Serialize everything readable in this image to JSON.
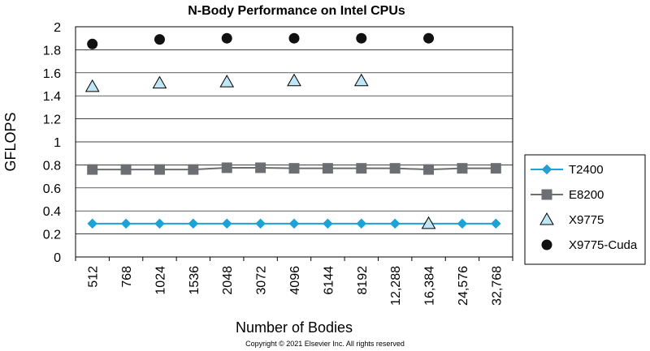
{
  "chart_data": {
    "type": "line",
    "title": "N-Body Performance on Intel CPUs",
    "xlabel": "Number of Bodies",
    "ylabel": "GFLOPS",
    "ylim": [
      0,
      2
    ],
    "yticks": [
      "0",
      "0.2",
      "0.4",
      "0.6",
      "0.8",
      "1",
      "1.2",
      "1.4",
      "1.6",
      "1.8",
      "2"
    ],
    "categories": [
      "512",
      "768",
      "1024",
      "1536",
      "2048",
      "3072",
      "4096",
      "6144",
      "8192",
      "12,288",
      "16,384",
      "24,576",
      "32,768"
    ],
    "grid": true,
    "legend_position": "right",
    "series": [
      {
        "name": "T2400",
        "style": "line",
        "marker": "diamond",
        "color": "#1ba3d8",
        "values": [
          0.29,
          0.29,
          0.29,
          0.29,
          0.29,
          0.29,
          0.29,
          0.29,
          0.29,
          0.29,
          0.29,
          0.29,
          0.29
        ]
      },
      {
        "name": "E8200",
        "style": "line",
        "marker": "square",
        "color": "#6d6e71",
        "values": [
          0.76,
          0.76,
          0.76,
          0.76,
          0.775,
          0.775,
          0.77,
          0.77,
          0.77,
          0.77,
          0.76,
          0.77,
          0.77
        ]
      },
      {
        "name": "X9775",
        "style": "markers",
        "marker": "triangle",
        "color": "#bfe6f5",
        "values": [
          1.48,
          null,
          1.51,
          null,
          1.52,
          null,
          1.53,
          null,
          1.53,
          null,
          0.29,
          null,
          null
        ]
      },
      {
        "name": "X9775-Cuda",
        "style": "markers",
        "marker": "circle",
        "color": "#111111",
        "values": [
          1.85,
          null,
          1.89,
          null,
          1.9,
          null,
          1.9,
          null,
          1.9,
          null,
          1.9,
          null,
          null
        ]
      }
    ]
  },
  "footer": {
    "copyright": "Copyright © 2021 Elsevier Inc. All rights reserved"
  }
}
